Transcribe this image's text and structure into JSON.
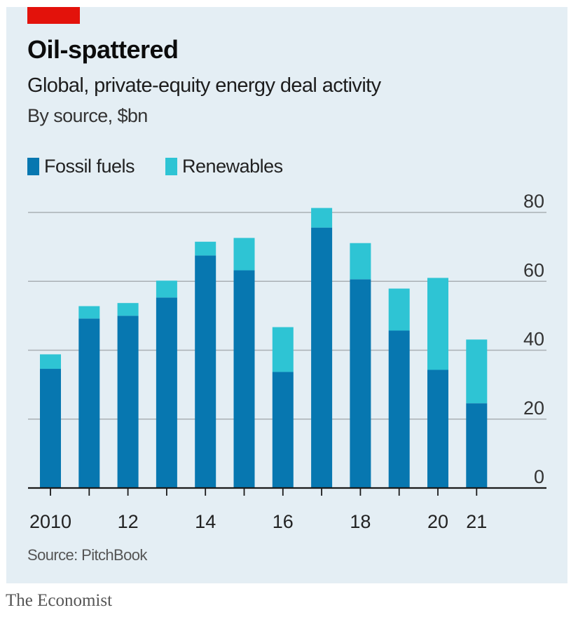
{
  "header": {
    "title": "Oil-spattered",
    "subtitle": "Global, private-equity energy deal activity",
    "unit_note": "By source, $bn"
  },
  "legend": [
    {
      "label": "Fossil fuels",
      "color": "#0777b0"
    },
    {
      "label": "Renewables",
      "color": "#2ec4d4"
    }
  ],
  "footer": {
    "source": "Source: PitchBook",
    "brand": "The Economist"
  },
  "colors": {
    "accent_red": "#e3120b",
    "fossil": "#0777b0",
    "renewables": "#2ec4d4",
    "panel_bg": "#e4eef4",
    "gridline": "#a9b0b4",
    "axis": "#1a1a1a"
  },
  "chart_data": {
    "type": "bar",
    "stacked": true,
    "title": "Oil-spattered",
    "subtitle": "Global, private-equity energy deal activity",
    "ylabel": "By source, $bn",
    "xlabel": "",
    "categories": [
      "2010",
      "2011",
      "2012",
      "2013",
      "2014",
      "2015",
      "2016",
      "2017",
      "2018",
      "2019",
      "2020",
      "2021"
    ],
    "x_tick_labels": [
      {
        "category": "2010",
        "label": "2010"
      },
      {
        "category": "2012",
        "label": "12"
      },
      {
        "category": "2014",
        "label": "14"
      },
      {
        "category": "2016",
        "label": "16"
      },
      {
        "category": "2018",
        "label": "18"
      },
      {
        "category": "2020",
        "label": "20"
      },
      {
        "category": "2021",
        "label": "21"
      }
    ],
    "series": [
      {
        "name": "Fossil fuels",
        "values": [
          34.6,
          49.2,
          50.0,
          55.3,
          67.5,
          63.2,
          33.7,
          75.6,
          60.6,
          45.7,
          34.3,
          24.6
        ]
      },
      {
        "name": "Renewables",
        "values": [
          4.2,
          3.6,
          3.7,
          4.9,
          4.0,
          9.4,
          13.0,
          5.7,
          10.5,
          12.2,
          26.7,
          18.5
        ]
      }
    ],
    "ylim": [
      0,
      80
    ],
    "y_ticks": [
      0,
      20,
      40,
      60,
      80
    ],
    "y_axis_side": "right",
    "grid": true,
    "legend_position": "top-left",
    "source": "Source: PitchBook"
  }
}
